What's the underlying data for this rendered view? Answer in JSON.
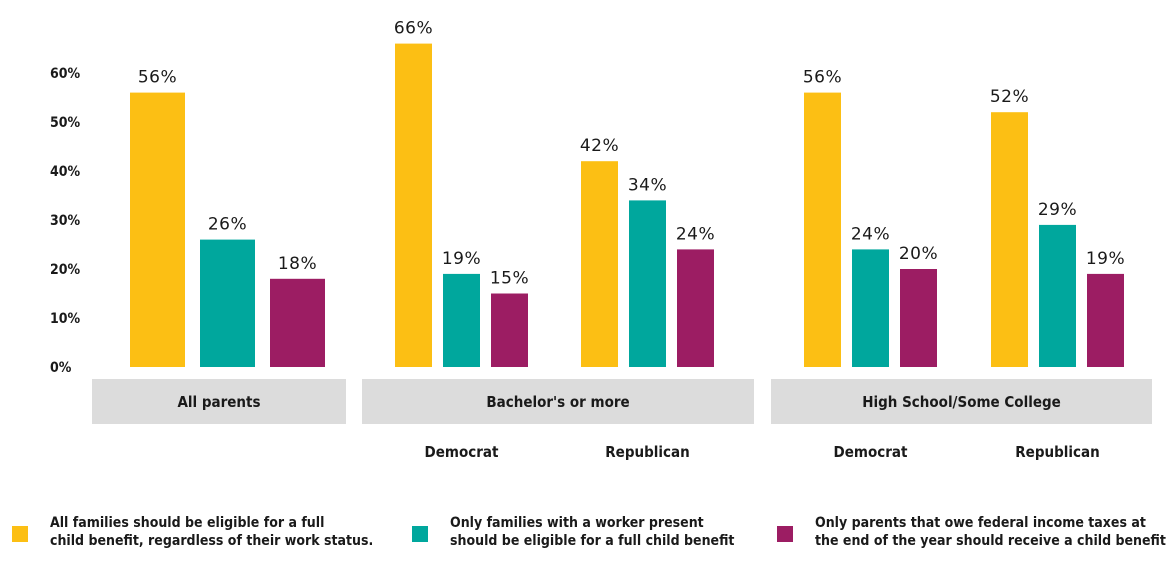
{
  "chart_data": {
    "type": "bar",
    "ylim": [
      0,
      66
    ],
    "yticks": [
      "0%",
      "10%",
      "20%",
      "30%",
      "40%",
      "50%",
      "60%"
    ],
    "groups": [
      {
        "label": "All parents",
        "subgroups": [
          {
            "label": "",
            "values": [
              56,
              26,
              18
            ],
            "labels": [
              "56%",
              "26%",
              "18%"
            ]
          }
        ]
      },
      {
        "label": "Bachelor's or more",
        "subgroups": [
          {
            "label": "Democrat",
            "values": [
              66,
              19,
              15
            ],
            "labels": [
              "66%",
              "19%",
              "15%"
            ]
          },
          {
            "label": "Republican",
            "values": [
              42,
              34,
              24
            ],
            "labels": [
              "42%",
              "34%",
              "24%"
            ]
          }
        ]
      },
      {
        "label": "High School/Some College",
        "subgroups": [
          {
            "label": "Democrat",
            "values": [
              56,
              24,
              20
            ],
            "labels": [
              "56%",
              "24%",
              "20%"
            ]
          },
          {
            "label": "Republican",
            "values": [
              52,
              29,
              19
            ],
            "labels": [
              "52%",
              "29%",
              "19%"
            ]
          }
        ]
      }
    ],
    "series": [
      {
        "name": "All families should be eligible for a full\nchild benefit, regardless of their work status.",
        "color": "#FCBF14"
      },
      {
        "name": "Only families with a worker present\nshould be eligible for a full child benefit",
        "color": "#00A79D"
      },
      {
        "name": "Only parents that owe federal income taxes at\nthe end of the year should receive a child benefit",
        "color": "#9C1D63"
      }
    ],
    "grid": false,
    "legend_position": "bottom"
  }
}
